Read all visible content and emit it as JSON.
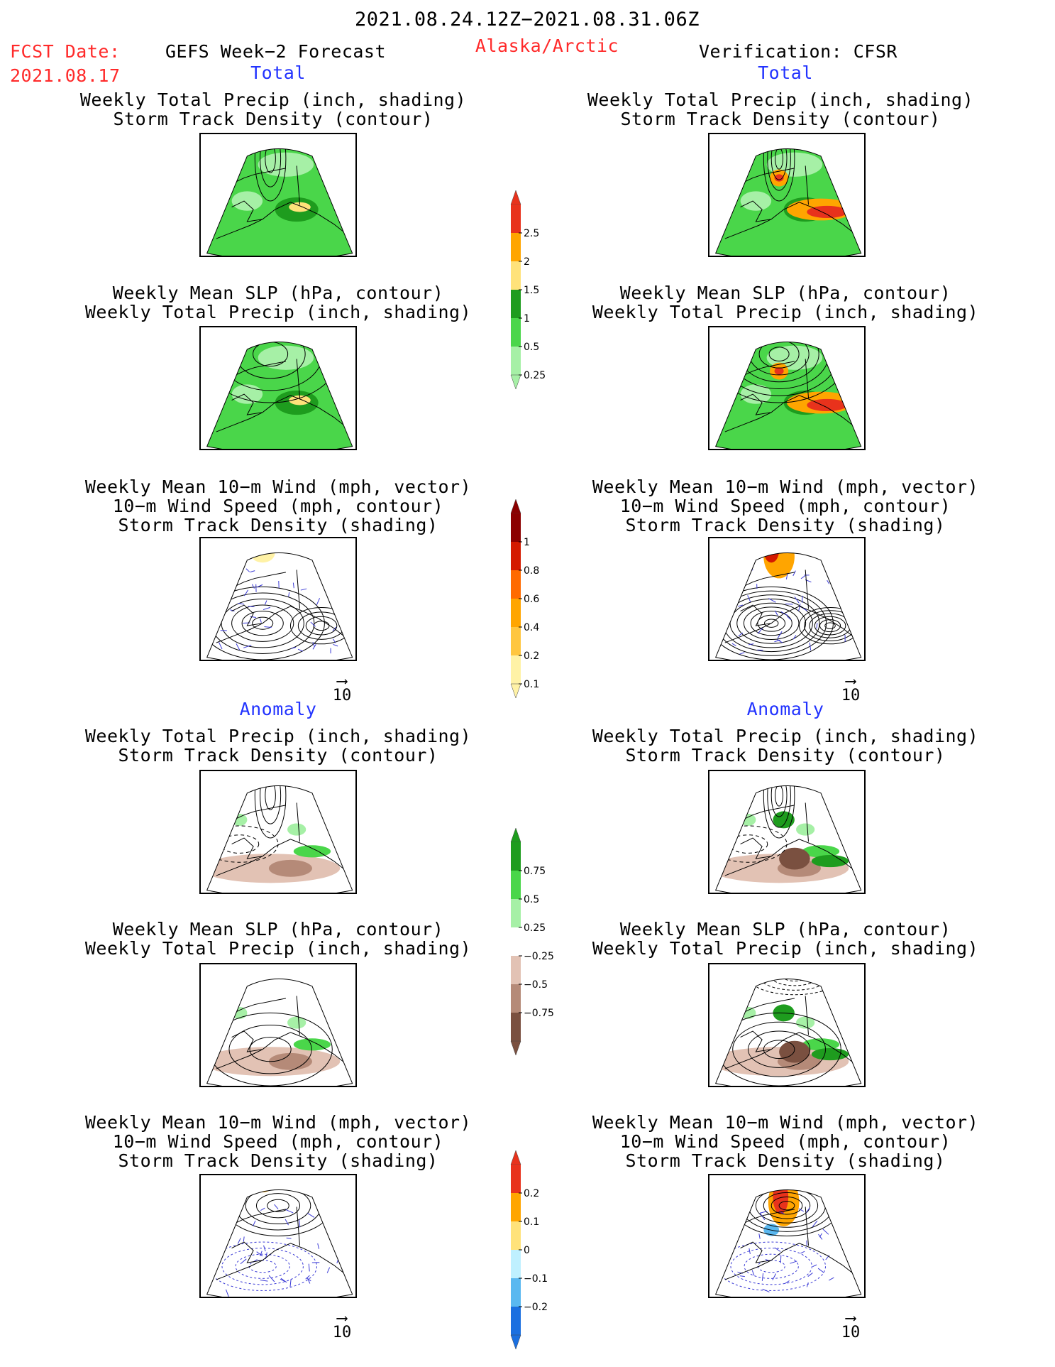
{
  "header": {
    "date_range": "2021.08.24.12Z−2021.08.31.06Z",
    "fcst_label": "FCST Date:",
    "fcst_date": "2021.08.17",
    "forecast_title": "GEFS Week−2 Forecast",
    "region": "Alaska/Arctic",
    "verification": "Verification: CFSR"
  },
  "sections": {
    "total": "Total",
    "anomaly": "Anomaly"
  },
  "panel_titles": {
    "precip_track": [
      "Weekly Total Precip (inch, shading)",
      "Storm Track Density (contour)"
    ],
    "slp_precip": [
      "Weekly Mean SLP (hPa, contour)",
      "Weekly Total Precip (inch, shading)"
    ],
    "wind_track": [
      "Weekly Mean 10−m Wind (mph, vector)",
      "10−m Wind Speed (mph, contour)",
      "Storm Track Density (shading)"
    ]
  },
  "vector_ref": "10",
  "colorbars": {
    "precip_total": {
      "ticks": [
        "2.5",
        "2",
        "1.5",
        "1",
        "0.5",
        "0.25"
      ],
      "colors": [
        "#e8321c",
        "#ffa500",
        "#ffe27a",
        "#1e9c1e",
        "#4ad64a",
        "#a6f0a6"
      ]
    },
    "storm_total": {
      "ticks": [
        "1",
        "0.8",
        "0.6",
        "0.4",
        "0.2",
        "0.1"
      ],
      "colors": [
        "#8b0000",
        "#d41a00",
        "#ff6a00",
        "#ffa500",
        "#ffc640",
        "#fff2a6"
      ]
    },
    "precip_anom": {
      "ticks": [
        "0.75",
        "0.5",
        "0.25",
        "−0.25",
        "−0.5",
        "−0.75"
      ],
      "colors": [
        "#1e9c1e",
        "#4ad64a",
        "#a6f0a6",
        "#ffffff",
        "#e2c2b4",
        "#b58a78",
        "#7a5040"
      ]
    },
    "storm_anom": {
      "ticks": [
        "0.2",
        "0.1",
        "0",
        "−0.1",
        "−0.2"
      ],
      "colors": [
        "#e8321c",
        "#ffa500",
        "#ffe27a",
        "#bff0ff",
        "#5ab8f0",
        "#1a6fe0"
      ]
    }
  },
  "chart_data": [
    {
      "type": "heatmap",
      "panel": "left-1",
      "title": "Weekly Total Precip (inch, shading) / Storm Track Density (contour)"
    },
    {
      "type": "heatmap",
      "panel": "left-2",
      "title": "Weekly Mean SLP (hPa, contour) / Weekly Total Precip (inch, shading)"
    },
    {
      "type": "heatmap",
      "panel": "left-3",
      "title": "Weekly Mean 10-m Wind / 10-m Wind Speed / Storm Track Density"
    },
    {
      "type": "heatmap",
      "panel": "right-1",
      "title": "Weekly Total Precip (inch, shading) / Storm Track Density (contour)"
    },
    {
      "type": "heatmap",
      "panel": "right-2",
      "title": "Weekly Mean SLP (hPa, contour) / Weekly Total Precip (inch, shading)"
    },
    {
      "type": "heatmap",
      "panel": "right-3",
      "title": "Weekly Mean 10-m Wind / 10-m Wind Speed / Storm Track Density"
    }
  ]
}
